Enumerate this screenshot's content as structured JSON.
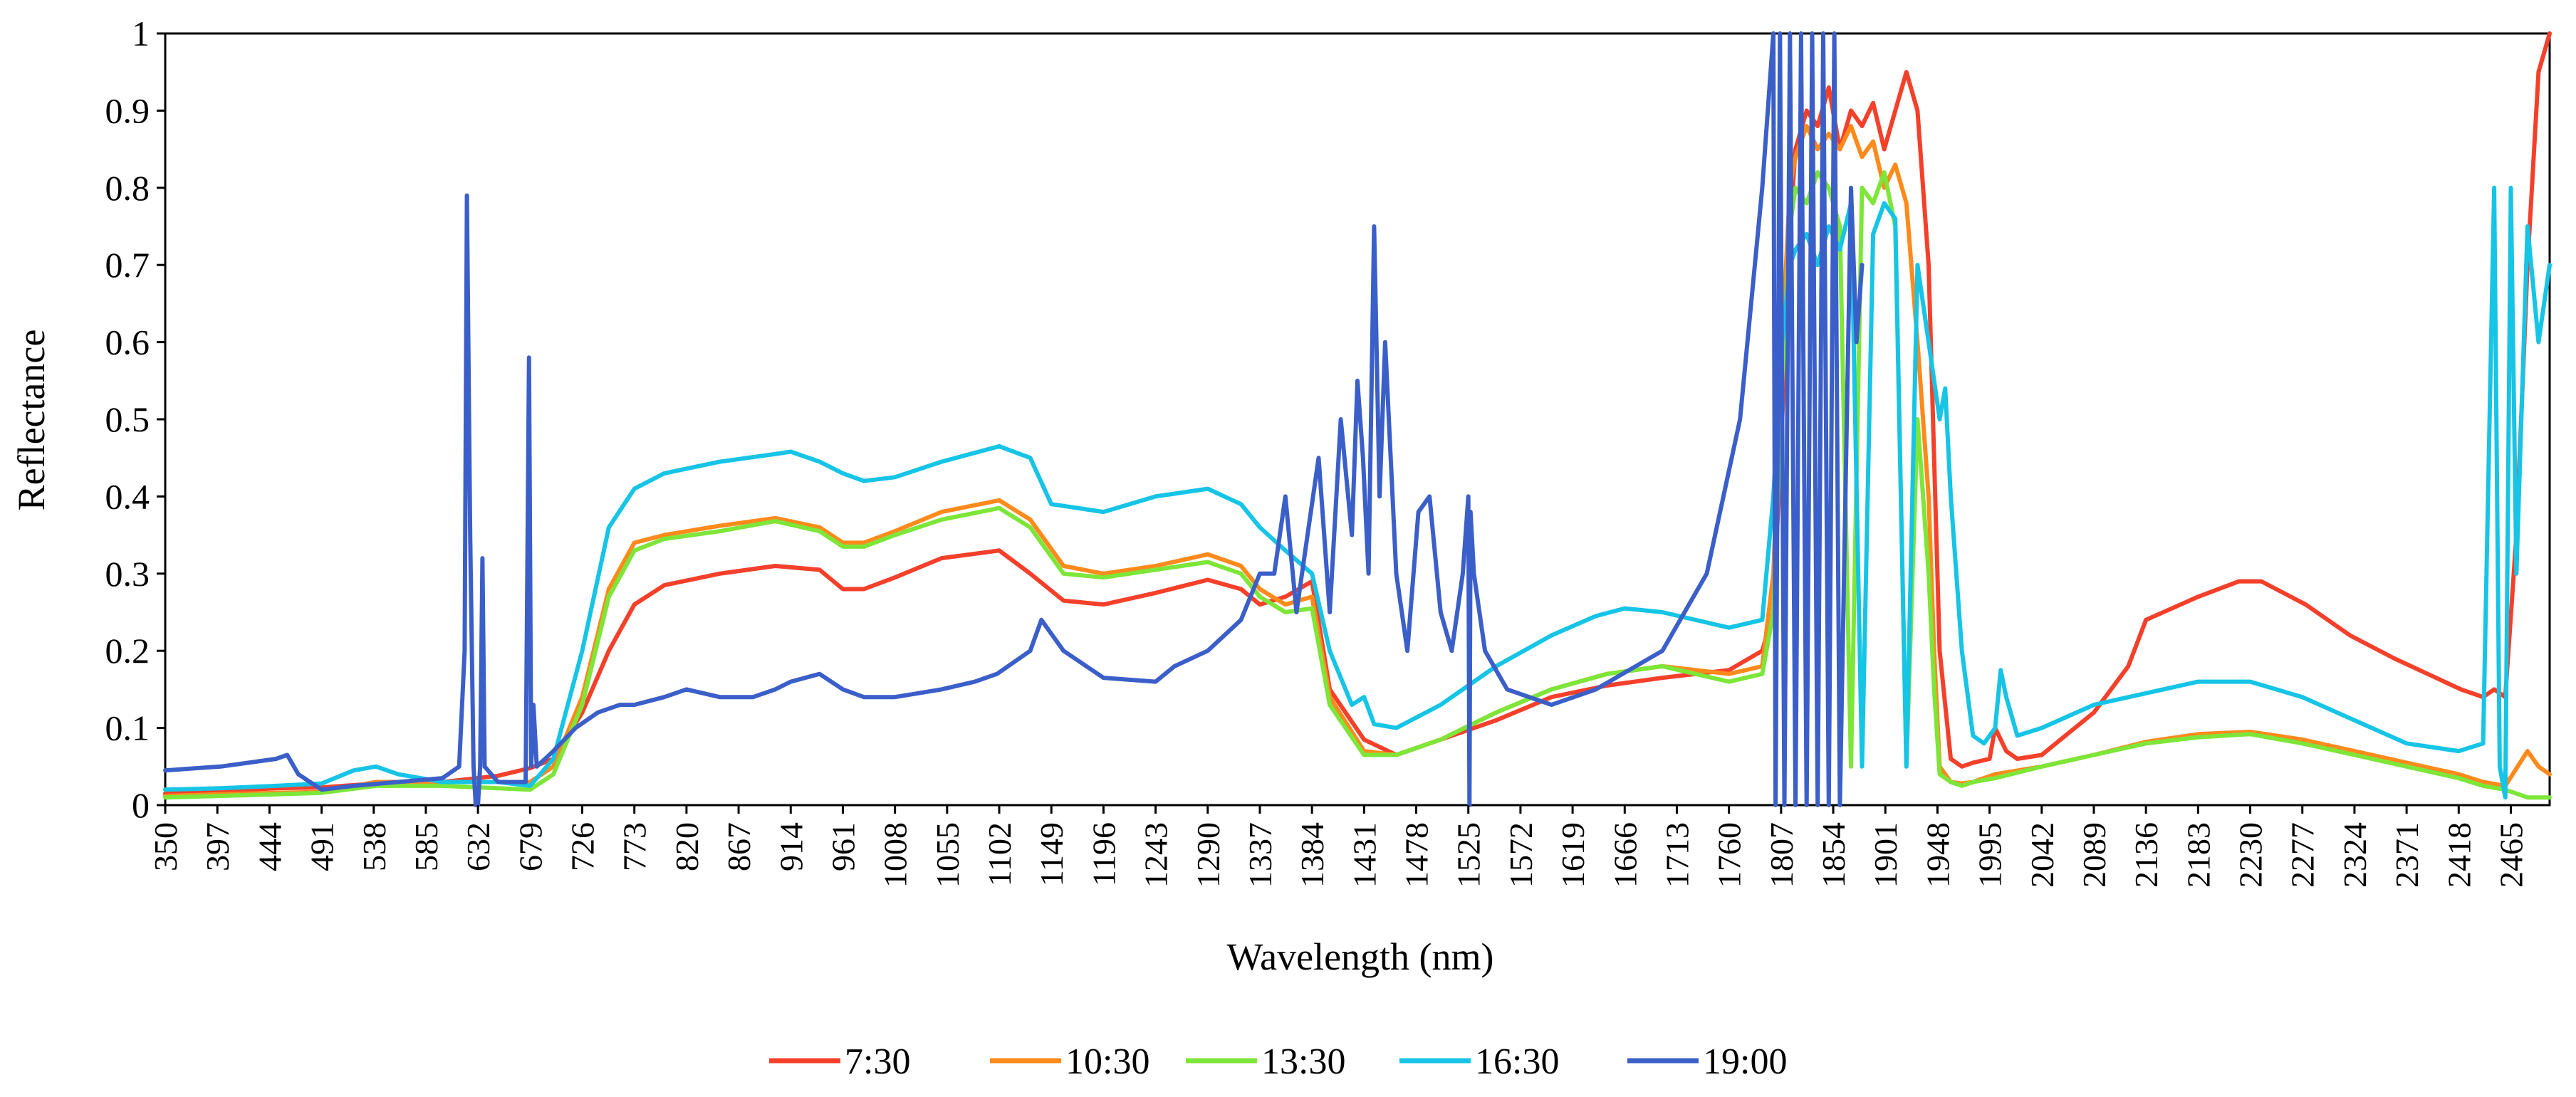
{
  "chart_data": {
    "type": "line",
    "title": "",
    "xlabel": "Wavelength  (nm)",
    "ylabel": "Reflectance",
    "xlim": [
      350,
      2500
    ],
    "ylim": [
      0,
      1
    ],
    "y_ticks": [
      "0",
      "0.1",
      "0.2",
      "0.3",
      "0.4",
      "0.5",
      "0.6",
      "0.7",
      "0.8",
      "0.9",
      "1"
    ],
    "x_ticks": [
      "350",
      "397",
      "444",
      "491",
      "538",
      "585",
      "632",
      "679",
      "726",
      "773",
      "820",
      "867",
      "914",
      "961",
      "1008",
      "1055",
      "1102",
      "1149",
      "1196",
      "1243",
      "1290",
      "1337",
      "1384",
      "1431",
      "1478",
      "1525",
      "1572",
      "1619",
      "1666",
      "1713",
      "1760",
      "1807",
      "1854",
      "1901",
      "1948",
      "1995",
      "2042",
      "2089",
      "2136",
      "2183",
      "2230",
      "2277",
      "2324",
      "2371",
      "2418",
      "2465"
    ],
    "legend_position": "bottom",
    "series": [
      {
        "name": "7:30",
        "color": "#f4402a",
        "x": [
          350,
          400,
          450,
          491,
          540,
          600,
          650,
          679,
          700,
          726,
          750,
          773,
          800,
          850,
          900,
          940,
          961,
          980,
          1008,
          1050,
          1102,
          1130,
          1160,
          1196,
          1243,
          1290,
          1320,
          1337,
          1360,
          1384,
          1400,
          1431,
          1460,
          1500,
          1550,
          1600,
          1650,
          1700,
          1760,
          1790,
          1800,
          1808,
          1815,
          1820,
          1830,
          1840,
          1850,
          1860,
          1870,
          1880,
          1890,
          1900,
          1910,
          1920,
          1930,
          1940,
          1945,
          1950,
          1960,
          1970,
          1980,
          1995,
          2000,
          2010,
          2020,
          2042,
          2089,
          2120,
          2136,
          2183,
          2220,
          2240,
          2280,
          2320,
          2360,
          2390,
          2420,
          2440,
          2450,
          2460,
          2470,
          2480,
          2490,
          2500
        ],
        "y": [
          0.015,
          0.018,
          0.022,
          0.023,
          0.028,
          0.03,
          0.038,
          0.048,
          0.06,
          0.12,
          0.2,
          0.26,
          0.285,
          0.3,
          0.31,
          0.305,
          0.28,
          0.28,
          0.295,
          0.32,
          0.33,
          0.3,
          0.265,
          0.26,
          0.275,
          0.292,
          0.28,
          0.26,
          0.27,
          0.29,
          0.15,
          0.085,
          0.065,
          0.085,
          0.11,
          0.14,
          0.155,
          0.165,
          0.175,
          0.2,
          0.25,
          0.5,
          0.75,
          0.85,
          0.9,
          0.88,
          0.93,
          0.85,
          0.9,
          0.88,
          0.91,
          0.85,
          0.9,
          0.95,
          0.9,
          0.7,
          0.45,
          0.2,
          0.06,
          0.05,
          0.055,
          0.06,
          0.1,
          0.07,
          0.06,
          0.065,
          0.12,
          0.18,
          0.24,
          0.27,
          0.29,
          0.29,
          0.26,
          0.22,
          0.19,
          0.17,
          0.15,
          0.14,
          0.15,
          0.14,
          0.35,
          0.7,
          0.95,
          1.0
        ]
      },
      {
        "name": "10:30",
        "color": "#ff8a1c",
        "x": [
          350,
          400,
          450,
          491,
          540,
          600,
          650,
          679,
          700,
          726,
          750,
          773,
          800,
          850,
          900,
          940,
          961,
          980,
          1008,
          1050,
          1102,
          1130,
          1160,
          1196,
          1243,
          1290,
          1320,
          1337,
          1360,
          1384,
          1400,
          1431,
          1460,
          1500,
          1550,
          1600,
          1650,
          1700,
          1760,
          1790,
          1800,
          1808,
          1815,
          1820,
          1830,
          1840,
          1850,
          1860,
          1870,
          1880,
          1890,
          1900,
          1910,
          1920,
          1930,
          1940,
          1945,
          1950,
          1960,
          1970,
          1980,
          2000,
          2042,
          2089,
          2136,
          2183,
          2230,
          2277,
          2324,
          2371,
          2418,
          2440,
          2460,
          2480,
          2490,
          2500
        ],
        "y": [
          0.012,
          0.014,
          0.016,
          0.017,
          0.03,
          0.03,
          0.03,
          0.03,
          0.05,
          0.14,
          0.28,
          0.34,
          0.35,
          0.362,
          0.372,
          0.36,
          0.34,
          0.34,
          0.355,
          0.38,
          0.395,
          0.37,
          0.31,
          0.3,
          0.31,
          0.325,
          0.31,
          0.28,
          0.26,
          0.27,
          0.14,
          0.07,
          0.065,
          0.085,
          0.12,
          0.15,
          0.17,
          0.18,
          0.17,
          0.18,
          0.3,
          0.6,
          0.8,
          0.84,
          0.88,
          0.85,
          0.87,
          0.85,
          0.88,
          0.84,
          0.86,
          0.8,
          0.83,
          0.78,
          0.6,
          0.4,
          0.2,
          0.05,
          0.03,
          0.028,
          0.03,
          0.04,
          0.05,
          0.065,
          0.082,
          0.092,
          0.095,
          0.085,
          0.07,
          0.055,
          0.04,
          0.03,
          0.025,
          0.07,
          0.05,
          0.04
        ]
      },
      {
        "name": "13:30",
        "color": "#7de639",
        "x": [
          350,
          400,
          450,
          491,
          540,
          600,
          650,
          679,
          700,
          726,
          750,
          773,
          800,
          850,
          900,
          940,
          961,
          980,
          1008,
          1050,
          1102,
          1130,
          1160,
          1196,
          1243,
          1290,
          1320,
          1337,
          1360,
          1384,
          1400,
          1431,
          1460,
          1500,
          1550,
          1600,
          1650,
          1700,
          1760,
          1790,
          1800,
          1808,
          1815,
          1820,
          1830,
          1840,
          1850,
          1860,
          1870,
          1880,
          1890,
          1900,
          1910,
          1920,
          1930,
          1940,
          1945,
          1950,
          1960,
          1970,
          1980,
          2000,
          2042,
          2089,
          2136,
          2183,
          2230,
          2277,
          2324,
          2371,
          2418,
          2440,
          2460,
          2480,
          2490,
          2500
        ],
        "y": [
          0.01,
          0.012,
          0.014,
          0.016,
          0.025,
          0.025,
          0.022,
          0.02,
          0.04,
          0.13,
          0.27,
          0.33,
          0.345,
          0.355,
          0.368,
          0.355,
          0.335,
          0.335,
          0.35,
          0.37,
          0.385,
          0.36,
          0.3,
          0.295,
          0.305,
          0.315,
          0.3,
          0.27,
          0.25,
          0.255,
          0.13,
          0.065,
          0.065,
          0.085,
          0.12,
          0.15,
          0.17,
          0.18,
          0.16,
          0.17,
          0.25,
          0.55,
          0.75,
          0.8,
          0.78,
          0.82,
          0.8,
          0.75,
          0.05,
          0.8,
          0.78,
          0.82,
          0.75,
          0.05,
          0.5,
          0.3,
          0.15,
          0.04,
          0.03,
          0.025,
          0.03,
          0.035,
          0.05,
          0.065,
          0.08,
          0.088,
          0.092,
          0.08,
          0.065,
          0.05,
          0.035,
          0.025,
          0.02,
          0.01,
          0.01,
          0.01
        ]
      },
      {
        "name": "16:30",
        "color": "#16c4e6",
        "x": [
          350,
          400,
          450,
          491,
          520,
          540,
          560,
          600,
          650,
          679,
          700,
          726,
          750,
          773,
          800,
          850,
          900,
          914,
          940,
          961,
          980,
          1008,
          1050,
          1102,
          1130,
          1149,
          1196,
          1243,
          1290,
          1320,
          1337,
          1360,
          1384,
          1400,
          1420,
          1431,
          1440,
          1460,
          1500,
          1550,
          1600,
          1640,
          1666,
          1700,
          1760,
          1790,
          1800,
          1808,
          1815,
          1820,
          1830,
          1840,
          1850,
          1860,
          1870,
          1880,
          1890,
          1900,
          1910,
          1920,
          1930,
          1940,
          1950,
          1955,
          1960,
          1970,
          1980,
          1990,
          2000,
          2005,
          2010,
          2020,
          2042,
          2089,
          2136,
          2183,
          2230,
          2277,
          2324,
          2371,
          2418,
          2440,
          2450,
          2455,
          2460,
          2465,
          2470,
          2480,
          2490,
          2500
        ],
        "y": [
          0.02,
          0.022,
          0.025,
          0.028,
          0.045,
          0.05,
          0.04,
          0.03,
          0.03,
          0.025,
          0.06,
          0.2,
          0.36,
          0.41,
          0.43,
          0.445,
          0.455,
          0.458,
          0.445,
          0.43,
          0.42,
          0.425,
          0.445,
          0.465,
          0.45,
          0.39,
          0.38,
          0.4,
          0.41,
          0.39,
          0.36,
          0.33,
          0.3,
          0.2,
          0.13,
          0.14,
          0.105,
          0.1,
          0.13,
          0.18,
          0.22,
          0.245,
          0.255,
          0.25,
          0.23,
          0.24,
          0.4,
          0.6,
          0.7,
          0.72,
          0.74,
          0.7,
          0.75,
          0.72,
          0.78,
          0.05,
          0.74,
          0.78,
          0.76,
          0.05,
          0.7,
          0.6,
          0.5,
          0.54,
          0.4,
          0.2,
          0.09,
          0.08,
          0.1,
          0.175,
          0.14,
          0.09,
          0.1,
          0.13,
          0.145,
          0.16,
          0.16,
          0.14,
          0.11,
          0.08,
          0.07,
          0.08,
          0.8,
          0.05,
          0.01,
          0.8,
          0.3,
          0.75,
          0.6,
          0.7
        ]
      },
      {
        "name": "19:00",
        "color": "#3b5fc9",
        "x": [
          350,
          400,
          450,
          460,
          470,
          491,
          520,
          560,
          600,
          615,
          620,
          622,
          625,
          628,
          630,
          632,
          634,
          636,
          638,
          650,
          675,
          678,
          680,
          682,
          685,
          700,
          720,
          740,
          760,
          773,
          800,
          820,
          850,
          880,
          900,
          914,
          940,
          961,
          980,
          1008,
          1050,
          1080,
          1100,
          1130,
          1140,
          1160,
          1196,
          1243,
          1260,
          1290,
          1320,
          1337,
          1350,
          1360,
          1370,
          1380,
          1390,
          1400,
          1410,
          1420,
          1425,
          1430,
          1435,
          1440,
          1445,
          1450,
          1460,
          1470,
          1480,
          1490,
          1500,
          1510,
          1520,
          1525,
          1526,
          1527,
          1530,
          1540,
          1560,
          1600,
          1640,
          1700,
          1740,
          1770,
          1790,
          1800,
          1802,
          1806,
          1810,
          1815,
          1820,
          1825,
          1830,
          1835,
          1840,
          1845,
          1850,
          1855,
          1860,
          1870,
          1875,
          1880
        ],
        "y": [
          0.045,
          0.05,
          0.06,
          0.065,
          0.04,
          0.02,
          0.025,
          0.03,
          0.035,
          0.05,
          0.2,
          0.79,
          0.35,
          0.05,
          0.0,
          0.0,
          0.05,
          0.32,
          0.05,
          0.03,
          0.03,
          0.58,
          0.05,
          0.13,
          0.05,
          0.07,
          0.1,
          0.12,
          0.13,
          0.13,
          0.14,
          0.15,
          0.14,
          0.14,
          0.15,
          0.16,
          0.17,
          0.15,
          0.14,
          0.14,
          0.15,
          0.16,
          0.17,
          0.2,
          0.24,
          0.2,
          0.165,
          0.16,
          0.18,
          0.2,
          0.24,
          0.3,
          0.3,
          0.4,
          0.25,
          0.35,
          0.45,
          0.25,
          0.5,
          0.35,
          0.55,
          0.45,
          0.3,
          0.75,
          0.4,
          0.6,
          0.3,
          0.2,
          0.38,
          0.4,
          0.25,
          0.2,
          0.3,
          0.4,
          0.0,
          0.38,
          0.3,
          0.2,
          0.15,
          0.13,
          0.15,
          0.2,
          0.3,
          0.5,
          0.8,
          1.0,
          0.0,
          1.0,
          0.0,
          1.0,
          0.0,
          1.0,
          0.0,
          1.0,
          0.0,
          1.0,
          0.0,
          1.0,
          0.0,
          0.8,
          0.6,
          0.7
        ]
      }
    ]
  }
}
